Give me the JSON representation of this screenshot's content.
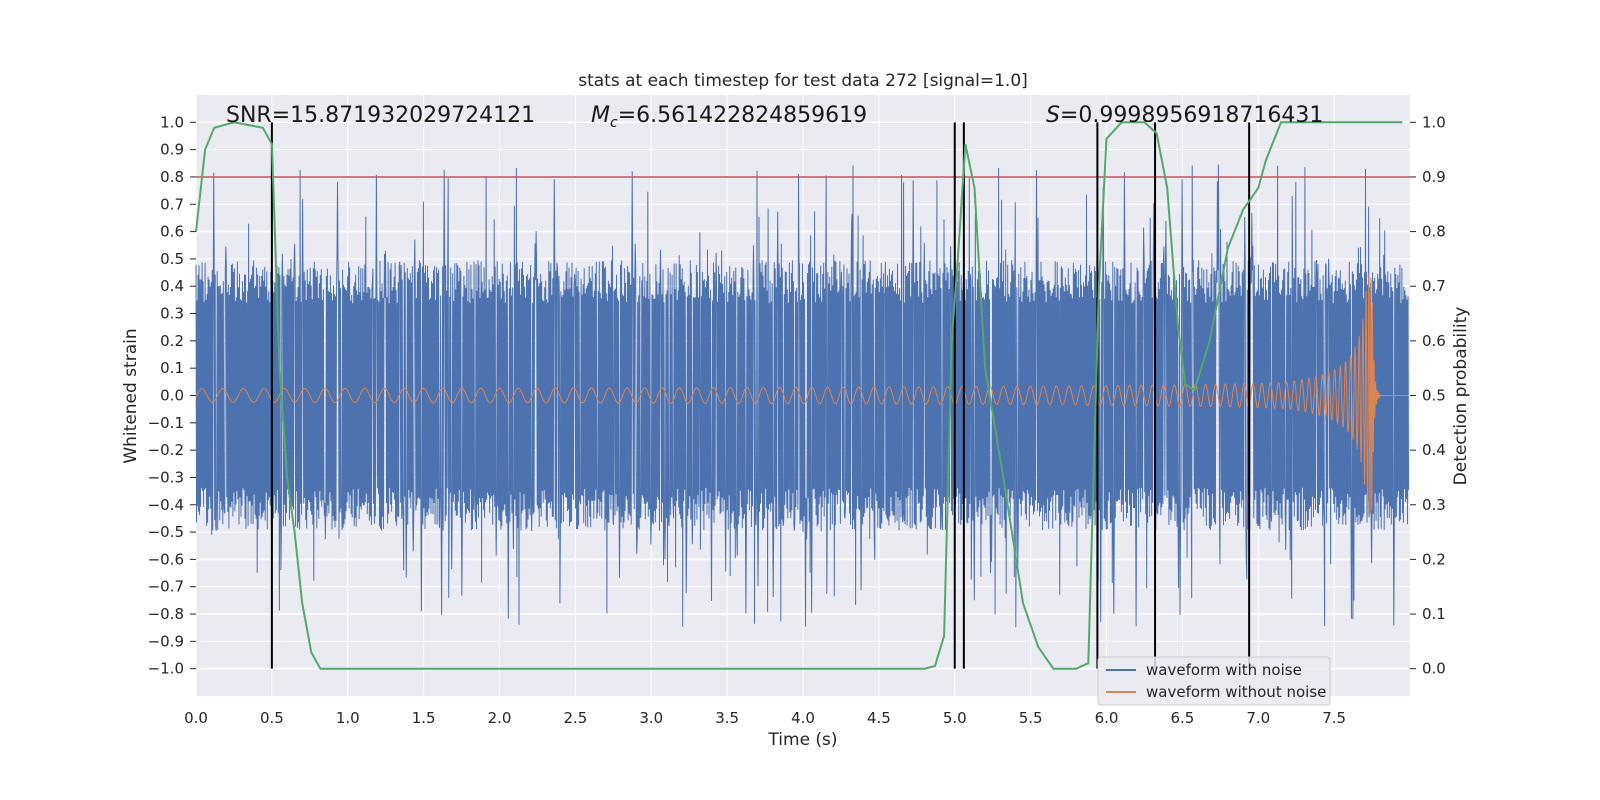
{
  "chart_data": {
    "type": "line",
    "title": "stats at each timestep for test data 272 [signal=1.0]",
    "xlabel": "Time (s)",
    "ylabel": "Whitened strain",
    "y2label": "Detection probability",
    "xlim": [
      0.0,
      8.0
    ],
    "ylim": [
      -1.1,
      1.1
    ],
    "y2lim": [
      -0.05,
      1.05
    ],
    "xticks": [
      0.0,
      0.5,
      1.0,
      1.5,
      2.0,
      2.5,
      3.0,
      3.5,
      4.0,
      4.5,
      5.0,
      5.5,
      6.0,
      6.5,
      7.0,
      7.5
    ],
    "xtick_labels": [
      "0.0",
      "0.5",
      "1.0",
      "1.5",
      "2.0",
      "2.5",
      "3.0",
      "3.5",
      "4.0",
      "4.5",
      "5.0",
      "5.5",
      "6.0",
      "6.5",
      "7.0",
      "7.5"
    ],
    "yticks": [
      1.0,
      0.9,
      0.8,
      0.7,
      0.6,
      0.5,
      0.4,
      0.3,
      0.2,
      0.1,
      0.0,
      -0.1,
      -0.2,
      -0.3,
      -0.4,
      -0.5,
      -0.6,
      -0.7,
      -0.8,
      -0.9,
      -1.0
    ],
    "ytick_labels": [
      "1.0",
      "0.9",
      "0.8",
      "0.7",
      "0.6",
      "0.5",
      "0.4",
      "0.3",
      "0.2",
      "0.1",
      "0.0",
      "−0.1",
      "−0.2",
      "−0.3",
      "−0.4",
      "−0.5",
      "−0.6",
      "−0.7",
      "−0.8",
      "−0.9",
      "−1.0"
    ],
    "y2ticks": [
      1.0,
      0.9,
      0.8,
      0.7,
      0.6,
      0.5,
      0.4,
      0.3,
      0.2,
      0.1,
      0.0
    ],
    "y2tick_labels": [
      "1.0",
      "0.9",
      "0.8",
      "0.7",
      "0.6",
      "0.5",
      "0.4",
      "0.3",
      "0.2",
      "0.1",
      "0.0"
    ],
    "grid": true,
    "legend_position": "lower-right",
    "series": [
      {
        "name": "waveform with noise",
        "color": "#4c72b0",
        "axis": "left",
        "style": "noise",
        "amplitude_typical": 0.45,
        "amplitude_peak": 1.0
      },
      {
        "name": "waveform without noise",
        "color": "#dd8452",
        "axis": "left",
        "style": "chirp",
        "merger_time": 7.75,
        "amplitude_start": 0.025,
        "amplitude_peak": 0.45
      },
      {
        "name": "",
        "color": "#55a868",
        "axis": "right",
        "style": "line",
        "x": [
          0.0,
          0.06,
          0.12,
          0.25,
          0.44,
          0.5,
          0.55,
          0.6,
          0.65,
          0.7,
          0.76,
          0.82,
          1.2,
          2.5,
          4.0,
          4.8,
          4.87,
          4.93,
          4.98,
          5.02,
          5.07,
          5.13,
          5.2,
          5.32,
          5.45,
          5.55,
          5.65,
          5.8,
          5.88,
          5.95,
          6.0,
          6.1,
          6.25,
          6.33,
          6.4,
          6.47,
          6.52,
          6.58,
          6.68,
          6.8,
          6.9,
          7.0,
          7.05,
          7.15,
          7.5,
          7.95
        ],
        "y": [
          0.8,
          0.95,
          0.99,
          1.0,
          0.99,
          0.96,
          0.55,
          0.35,
          0.25,
          0.12,
          0.03,
          0.0,
          0.0,
          0.0,
          0.0,
          0.0,
          0.005,
          0.06,
          0.6,
          0.75,
          0.96,
          0.88,
          0.55,
          0.35,
          0.12,
          0.04,
          0.0,
          0.0,
          0.01,
          0.7,
          0.97,
          1.0,
          1.0,
          0.98,
          0.88,
          0.63,
          0.52,
          0.51,
          0.6,
          0.77,
          0.84,
          0.88,
          0.93,
          1.0,
          1.0,
          1.0
        ]
      },
      {
        "name": "",
        "color": "#c44e52",
        "axis": "right",
        "style": "hline",
        "y": 0.9
      }
    ],
    "vlines": [
      0.5,
      5.0,
      5.06,
      5.94,
      6.32,
      6.94
    ],
    "annotations": {
      "snr_text": "SNR=15.871932029724121",
      "mc_symbol": "M",
      "mc_sub": "c",
      "mc_value": "=6.561422824859619",
      "s_symbol": "S",
      "s_value": "=0.9998956918716431"
    }
  }
}
